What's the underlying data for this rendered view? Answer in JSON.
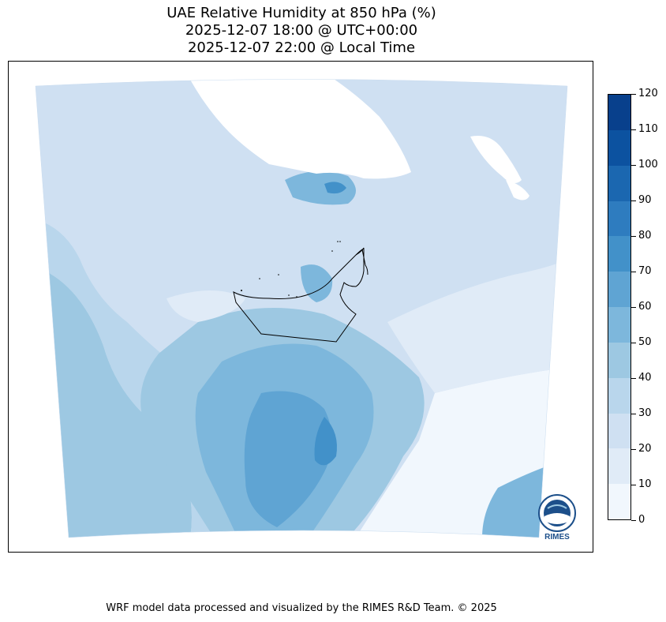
{
  "title": {
    "line1": "UAE Relative Humidity at 850 hPa (%)",
    "line2": "2025-12-07 18:00 @ UTC+00:00",
    "line3": "2025-12-07 22:00 @ Local Time"
  },
  "footer": "WRF model data processed and visualized by the RIMES R&D Team. © 2025",
  "colorbar": {
    "ticks": [
      "120",
      "110",
      "100",
      "90",
      "80",
      "70",
      "60",
      "50",
      "40",
      "30",
      "20",
      "10",
      "0"
    ],
    "levels": [
      0,
      10,
      20,
      30,
      40,
      50,
      60,
      70,
      80,
      90,
      100,
      110,
      120
    ],
    "colors": [
      "#f1f7fd",
      "#e0ebf7",
      "#cfe0f2",
      "#b9d6ec",
      "#9dc8e2",
      "#7db7dc",
      "#5fa4d3",
      "#4291c9",
      "#2e7cbf",
      "#1b67b0",
      "#0c52a0",
      "#08408c",
      "#073575"
    ]
  },
  "logo": {
    "text": "RIMES",
    "icon": "rimes-globe-logo"
  },
  "map": {
    "variable": "Relative Humidity",
    "level": "850 hPa",
    "unit": "%",
    "region": "UAE",
    "missing_color": "#ffffff",
    "border_color": "#000000"
  }
}
